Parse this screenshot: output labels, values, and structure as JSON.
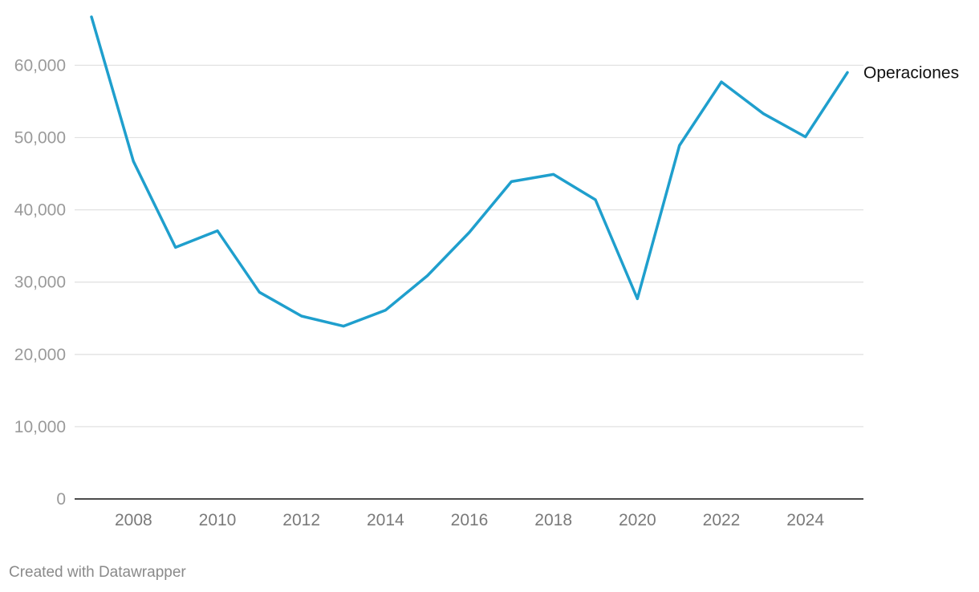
{
  "chart_data": {
    "type": "line",
    "x": [
      2007,
      2008,
      2009,
      2010,
      2011,
      2012,
      2013,
      2014,
      2015,
      2016,
      2017,
      2018,
      2019,
      2020,
      2021,
      2022,
      2023,
      2024,
      2025
    ],
    "series": [
      {
        "name": "Operaciones",
        "values": [
          66700,
          46700,
          34800,
          37100,
          28600,
          25300,
          23900,
          26100,
          30900,
          36900,
          43900,
          44900,
          41400,
          27700,
          48900,
          57700,
          53300,
          50100,
          59000
        ],
        "color": "#1f9fcd"
      }
    ],
    "title": "",
    "xlabel": "",
    "ylabel": "",
    "ylim": [
      0,
      66700
    ],
    "xlim": [
      2007,
      2025
    ],
    "y_ticks": [
      "0",
      "10,000",
      "20,000",
      "30,000",
      "40,000",
      "50,000",
      "60,000"
    ],
    "y_tick_values": [
      0,
      10000,
      20000,
      30000,
      40000,
      50000,
      60000
    ],
    "x_ticks": [
      "2008",
      "2010",
      "2012",
      "2014",
      "2016",
      "2018",
      "2020",
      "2022",
      "2024"
    ],
    "x_tick_values": [
      2008,
      2010,
      2012,
      2014,
      2016,
      2018,
      2020,
      2022,
      2024
    ],
    "grid": true,
    "legend": "direct-label-right"
  },
  "footer": {
    "credit": "Created with Datawrapper"
  }
}
